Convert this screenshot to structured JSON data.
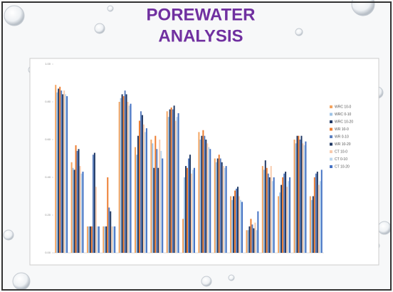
{
  "chart_data": {
    "type": "bar",
    "title": "POREWATER ANALYSIS",
    "categories": [
      null,
      null,
      null,
      null,
      null,
      null,
      null,
      null,
      null,
      null,
      null,
      null,
      null,
      null,
      null,
      null,
      null
    ],
    "ylim": [
      0,
      1
    ],
    "yticks": [
      {
        "value": 0,
        "label": "0.00"
      },
      {
        "value": 0.2,
        "label": "0.20"
      },
      {
        "value": 0.4,
        "label": "0.40"
      },
      {
        "value": 0.6,
        "label": "0.60"
      },
      {
        "value": 0.8,
        "label": "0.80"
      },
      {
        "value": 1,
        "label": "1.00"
      }
    ],
    "grid": false,
    "legend": "right",
    "series": [
      {
        "name": "WRC 10-0",
        "color": "#f4a460",
        "values": [
          0.89,
          0.48,
          0.14,
          0.14,
          0.8,
          0.56,
          0.6,
          0.75,
          0.18,
          0.64,
          0.5,
          0.3,
          0.12,
          0.46,
          0.3,
          0.6,
          0.3
        ]
      },
      {
        "name": "WRC 0-10",
        "color": "#9dc3e6",
        "values": [
          0.85,
          0.45,
          0.14,
          0.14,
          0.82,
          0.52,
          0.58,
          0.72,
          0.4,
          0.6,
          0.48,
          0.28,
          0.12,
          0.44,
          0.32,
          0.58,
          0.28
        ]
      },
      {
        "name": "WRC 10-20",
        "color": "#203864",
        "values": [
          0.87,
          0.44,
          0.14,
          0.14,
          0.84,
          0.62,
          0.45,
          0.76,
          0.46,
          0.62,
          0.5,
          0.3,
          0.14,
          0.49,
          0.36,
          0.62,
          0.3
        ]
      },
      {
        "name": "WR 10-0",
        "color": "#ed7d31",
        "values": [
          0.88,
          0.57,
          0.14,
          0.4,
          0.83,
          0.7,
          0.62,
          0.77,
          0.45,
          0.65,
          0.52,
          0.33,
          0.18,
          0.45,
          0.4,
          0.62,
          0.4
        ]
      },
      {
        "name": "WR 0-10",
        "color": "#5b7fbf",
        "values": [
          0.86,
          0.54,
          0.52,
          0.24,
          0.86,
          0.75,
          0.55,
          0.76,
          0.5,
          0.62,
          0.5,
          0.34,
          0.15,
          0.42,
          0.42,
          0.6,
          0.42
        ]
      },
      {
        "name": "WR 10-20",
        "color": "#1f3864",
        "values": [
          0.84,
          0.55,
          0.53,
          0.22,
          0.84,
          0.73,
          0.45,
          0.78,
          0.52,
          0.6,
          0.48,
          0.35,
          0.13,
          0.4,
          0.43,
          0.62,
          0.43
        ]
      },
      {
        "name": "CT 10-0",
        "color": "#f8cbad",
        "values": [
          0.86,
          0.46,
          0.35,
          0.14,
          0.8,
          0.68,
          0.6,
          0.7,
          0.42,
          0.58,
          0.46,
          0.3,
          0.16,
          0.46,
          0.35,
          0.58,
          0.36
        ]
      },
      {
        "name": "CT 0-10",
        "color": "#bdd7ee",
        "values": [
          0.84,
          0.42,
          0.14,
          0.14,
          0.78,
          0.64,
          0.54,
          0.72,
          0.44,
          0.56,
          0.45,
          0.28,
          0.12,
          0.38,
          0.38,
          0.57,
          0.38
        ]
      },
      {
        "name": "CT 10-20",
        "color": "#4472c4",
        "values": [
          0.83,
          0.43,
          0.14,
          0.14,
          0.79,
          0.66,
          0.5,
          0.74,
          0.45,
          0.55,
          0.46,
          0.27,
          0.22,
          0.4,
          0.4,
          0.59,
          0.44
        ]
      }
    ]
  }
}
